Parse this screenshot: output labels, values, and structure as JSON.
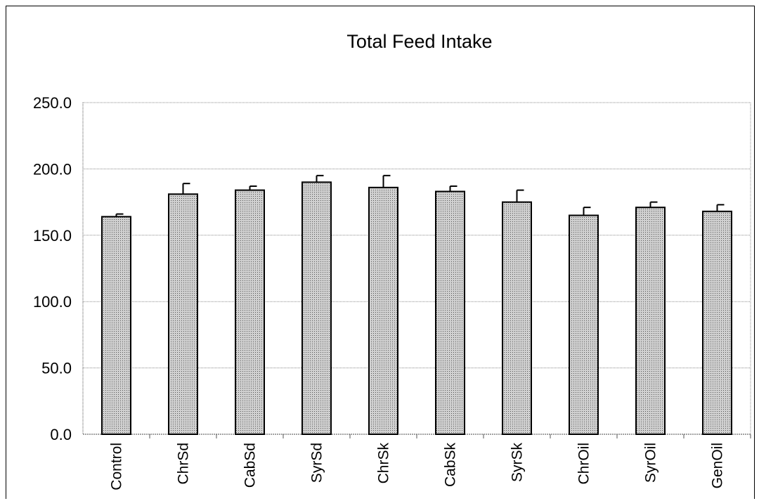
{
  "chart_data": {
    "type": "bar",
    "title": "Total Feed Intake",
    "xlabel": "",
    "ylabel": "",
    "categories": [
      "Control",
      "ChrSd",
      "CabSd",
      "SyrSd",
      "ChrSk",
      "CabSk",
      "SyrSk",
      "ChrOil",
      "SyrOil",
      "GenOil"
    ],
    "values": [
      164,
      181,
      184,
      190,
      186,
      183,
      175,
      165,
      171,
      168
    ],
    "error": [
      2,
      8,
      3,
      5,
      9,
      4,
      9,
      6,
      4,
      5
    ],
    "ylim": [
      0,
      250
    ],
    "yticks": [
      "0.0",
      "50.0",
      "100.0",
      "150.0",
      "200.0",
      "250.0"
    ],
    "grid": true,
    "legend": "none",
    "colors": {
      "bar": "#bdbdbd",
      "bar_stroke": "#000000",
      "grid": "#8a8a8a"
    }
  }
}
